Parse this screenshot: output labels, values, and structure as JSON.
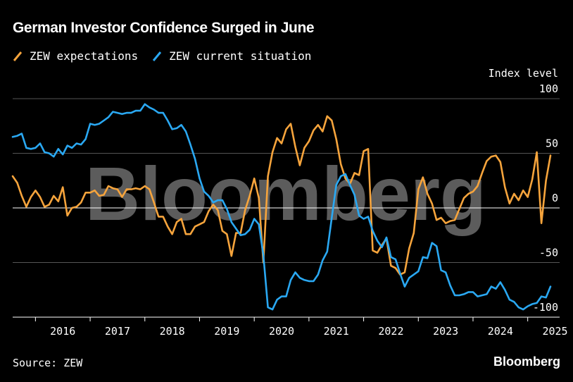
{
  "title": "German Investor Confidence Surged in June",
  "source": "Source: ZEW",
  "brand": "Bloomberg",
  "watermark": "Bloomberg",
  "colors": {
    "background": "#000000",
    "expectations": "#f6a43c",
    "current": "#2aa8f2",
    "grid": "#555555"
  },
  "chart_data": {
    "type": "line",
    "title": "German Investor Confidence Surged in June",
    "ylabel": "Index level",
    "ylim": [
      -100,
      100
    ],
    "yticks": [
      100,
      50,
      0,
      -50,
      -100
    ],
    "xlim": [
      "2015-08",
      "2025-08"
    ],
    "xticks": [
      "2016",
      "2017",
      "2018",
      "2019",
      "2020",
      "2021",
      "2022",
      "2023",
      "2024",
      "2025"
    ],
    "legend_position": "top-left",
    "grid": "horizontal",
    "series": [
      {
        "name": "ZEW expectations",
        "color": "#f6a43c",
        "points": [
          [
            "2015-08",
            29
          ],
          [
            "2015-09",
            23
          ],
          [
            "2015-10",
            11
          ],
          [
            "2015-11",
            1
          ],
          [
            "2015-12",
            10
          ],
          [
            "2016-01",
            16
          ],
          [
            "2016-02",
            10
          ],
          [
            "2016-03",
            1
          ],
          [
            "2016-04",
            3
          ],
          [
            "2016-05",
            11
          ],
          [
            "2016-06",
            6
          ],
          [
            "2016-07",
            19
          ],
          [
            "2016-08",
            -7
          ],
          [
            "2016-09",
            0
          ],
          [
            "2016-10",
            1
          ],
          [
            "2016-11",
            5
          ],
          [
            "2016-12",
            14
          ],
          [
            "2017-01",
            14
          ],
          [
            "2017-02",
            16
          ],
          [
            "2017-03",
            11
          ],
          [
            "2017-04",
            12
          ],
          [
            "2017-05",
            20
          ],
          [
            "2017-06",
            18
          ],
          [
            "2017-07",
            17
          ],
          [
            "2017-08",
            10
          ],
          [
            "2017-09",
            17
          ],
          [
            "2017-10",
            17
          ],
          [
            "2017-11",
            18
          ],
          [
            "2017-12",
            17
          ],
          [
            "2018-01",
            20
          ],
          [
            "2018-02",
            17
          ],
          [
            "2018-03",
            5
          ],
          [
            "2018-04",
            -8
          ],
          [
            "2018-05",
            -8
          ],
          [
            "2018-06",
            -17
          ],
          [
            "2018-07",
            -24
          ],
          [
            "2018-08",
            -13
          ],
          [
            "2018-09",
            -10
          ],
          [
            "2018-10",
            -24
          ],
          [
            "2018-11",
            -24
          ],
          [
            "2018-12",
            -17
          ],
          [
            "2019-01",
            -15
          ],
          [
            "2019-02",
            -13
          ],
          [
            "2019-03",
            -3
          ],
          [
            "2019-04",
            3
          ],
          [
            "2019-05",
            -2
          ],
          [
            "2019-06",
            -21
          ],
          [
            "2019-07",
            -24
          ],
          [
            "2019-08",
            -44
          ],
          [
            "2019-09",
            -23
          ],
          [
            "2019-10",
            -23
          ],
          [
            "2019-11",
            -2
          ],
          [
            "2019-12",
            11
          ],
          [
            "2020-01",
            27
          ],
          [
            "2020-02",
            9
          ],
          [
            "2020-03",
            -50
          ],
          [
            "2020-04",
            29
          ],
          [
            "2020-05",
            51
          ],
          [
            "2020-06",
            64
          ],
          [
            "2020-07",
            59
          ],
          [
            "2020-08",
            72
          ],
          [
            "2020-09",
            77
          ],
          [
            "2020-10",
            56
          ],
          [
            "2020-11",
            39
          ],
          [
            "2020-12",
            55
          ],
          [
            "2021-01",
            61
          ],
          [
            "2021-02",
            71
          ],
          [
            "2021-03",
            76
          ],
          [
            "2021-04",
            70
          ],
          [
            "2021-05",
            84
          ],
          [
            "2021-06",
            80
          ],
          [
            "2021-07",
            63
          ],
          [
            "2021-08",
            40
          ],
          [
            "2021-09",
            27
          ],
          [
            "2021-10",
            22
          ],
          [
            "2021-11",
            32
          ],
          [
            "2021-12",
            30
          ],
          [
            "2022-01",
            52
          ],
          [
            "2022-02",
            54
          ],
          [
            "2022-03",
            -39
          ],
          [
            "2022-04",
            -41
          ],
          [
            "2022-05",
            -34
          ],
          [
            "2022-06",
            -28
          ],
          [
            "2022-07",
            -53
          ],
          [
            "2022-08",
            -55
          ],
          [
            "2022-09",
            -61
          ],
          [
            "2022-10",
            -59
          ],
          [
            "2022-11",
            -37
          ],
          [
            "2022-12",
            -23
          ],
          [
            "2023-01",
            17
          ],
          [
            "2023-02",
            28
          ],
          [
            "2023-03",
            13
          ],
          [
            "2023-04",
            4
          ],
          [
            "2023-05",
            -11
          ],
          [
            "2023-06",
            -9
          ],
          [
            "2023-07",
            -14
          ],
          [
            "2023-08",
            -12
          ],
          [
            "2023-09",
            -11
          ],
          [
            "2023-10",
            -1
          ],
          [
            "2023-11",
            9
          ],
          [
            "2023-12",
            13
          ],
          [
            "2024-01",
            15
          ],
          [
            "2024-02",
            20
          ],
          [
            "2024-03",
            32
          ],
          [
            "2024-04",
            43
          ],
          [
            "2024-05",
            47
          ],
          [
            "2024-06",
            48
          ],
          [
            "2024-07",
            42
          ],
          [
            "2024-08",
            19
          ],
          [
            "2024-09",
            4
          ],
          [
            "2024-10",
            13
          ],
          [
            "2024-11",
            7
          ],
          [
            "2024-12",
            16
          ],
          [
            "2025-01",
            10
          ],
          [
            "2025-02",
            26
          ],
          [
            "2025-03",
            51
          ],
          [
            "2025-04",
            -14
          ],
          [
            "2025-05",
            25
          ],
          [
            "2025-06",
            48
          ]
        ]
      },
      {
        "name": "ZEW current situation",
        "color": "#2aa8f2",
        "points": [
          [
            "2015-08",
            65
          ],
          [
            "2015-09",
            66
          ],
          [
            "2015-10",
            68
          ],
          [
            "2015-11",
            55
          ],
          [
            "2015-12",
            54
          ],
          [
            "2016-01",
            55
          ],
          [
            "2016-02",
            59
          ],
          [
            "2016-03",
            51
          ],
          [
            "2016-04",
            50
          ],
          [
            "2016-05",
            47
          ],
          [
            "2016-06",
            54
          ],
          [
            "2016-07",
            49
          ],
          [
            "2016-08",
            57
          ],
          [
            "2016-09",
            55
          ],
          [
            "2016-10",
            59
          ],
          [
            "2016-11",
            58
          ],
          [
            "2016-12",
            63
          ],
          [
            "2017-01",
            77
          ],
          [
            "2017-02",
            76
          ],
          [
            "2017-03",
            77
          ],
          [
            "2017-04",
            80
          ],
          [
            "2017-05",
            83
          ],
          [
            "2017-06",
            88
          ],
          [
            "2017-07",
            87
          ],
          [
            "2017-08",
            86
          ],
          [
            "2017-09",
            87
          ],
          [
            "2017-10",
            87
          ],
          [
            "2017-11",
            89
          ],
          [
            "2017-12",
            89
          ],
          [
            "2018-01",
            95
          ],
          [
            "2018-02",
            92
          ],
          [
            "2018-03",
            90
          ],
          [
            "2018-04",
            87
          ],
          [
            "2018-05",
            87
          ],
          [
            "2018-06",
            80
          ],
          [
            "2018-07",
            72
          ],
          [
            "2018-08",
            73
          ],
          [
            "2018-09",
            76
          ],
          [
            "2018-10",
            70
          ],
          [
            "2018-11",
            58
          ],
          [
            "2018-12",
            45
          ],
          [
            "2019-01",
            27
          ],
          [
            "2019-02",
            15
          ],
          [
            "2019-03",
            11
          ],
          [
            "2019-04",
            5
          ],
          [
            "2019-05",
            7
          ],
          [
            "2019-06",
            7
          ],
          [
            "2019-07",
            -1
          ],
          [
            "2019-08",
            -13
          ],
          [
            "2019-09",
            -19
          ],
          [
            "2019-10",
            -25
          ],
          [
            "2019-11",
            -24
          ],
          [
            "2019-12",
            -20
          ],
          [
            "2020-01",
            -10
          ],
          [
            "2020-02",
            -15
          ],
          [
            "2020-03",
            -43
          ],
          [
            "2020-04",
            -91
          ],
          [
            "2020-05",
            -93
          ],
          [
            "2020-06",
            -84
          ],
          [
            "2020-07",
            -81
          ],
          [
            "2020-08",
            -81
          ],
          [
            "2020-09",
            -66
          ],
          [
            "2020-10",
            -59
          ],
          [
            "2020-11",
            -64
          ],
          [
            "2020-12",
            -66
          ],
          [
            "2021-01",
            -67
          ],
          [
            "2021-02",
            -67
          ],
          [
            "2021-03",
            -61
          ],
          [
            "2021-04",
            -48
          ],
          [
            "2021-05",
            -40
          ],
          [
            "2021-06",
            -9
          ],
          [
            "2021-07",
            21
          ],
          [
            "2021-08",
            29
          ],
          [
            "2021-09",
            31
          ],
          [
            "2021-10",
            21
          ],
          [
            "2021-11",
            12
          ],
          [
            "2021-12",
            -7
          ],
          [
            "2022-01",
            -10
          ],
          [
            "2022-02",
            -8
          ],
          [
            "2022-03",
            -21
          ],
          [
            "2022-04",
            -30
          ],
          [
            "2022-05",
            -36
          ],
          [
            "2022-06",
            -27
          ],
          [
            "2022-07",
            -45
          ],
          [
            "2022-08",
            -47
          ],
          [
            "2022-09",
            -60
          ],
          [
            "2022-10",
            -72
          ],
          [
            "2022-11",
            -64
          ],
          [
            "2022-12",
            -61
          ],
          [
            "2023-01",
            -58
          ],
          [
            "2023-02",
            -45
          ],
          [
            "2023-03",
            -46
          ],
          [
            "2023-04",
            -32
          ],
          [
            "2023-05",
            -35
          ],
          [
            "2023-06",
            -57
          ],
          [
            "2023-07",
            -59
          ],
          [
            "2023-08",
            -71
          ],
          [
            "2023-09",
            -80
          ],
          [
            "2023-10",
            -80
          ],
          [
            "2023-11",
            -79
          ],
          [
            "2023-12",
            -77
          ],
          [
            "2024-01",
            -77
          ],
          [
            "2024-02",
            -81
          ],
          [
            "2024-03",
            -80
          ],
          [
            "2024-04",
            -79
          ],
          [
            "2024-05",
            -72
          ],
          [
            "2024-06",
            -74
          ],
          [
            "2024-07",
            -68
          ],
          [
            "2024-08",
            -75
          ],
          [
            "2024-09",
            -84
          ],
          [
            "2024-10",
            -86
          ],
          [
            "2024-11",
            -91
          ],
          [
            "2024-12",
            -93
          ],
          [
            "2025-01",
            -90
          ],
          [
            "2025-02",
            -88
          ],
          [
            "2025-03",
            -87
          ],
          [
            "2025-04",
            -81
          ],
          [
            "2025-05",
            -82
          ],
          [
            "2025-06",
            -72
          ]
        ]
      }
    ]
  }
}
